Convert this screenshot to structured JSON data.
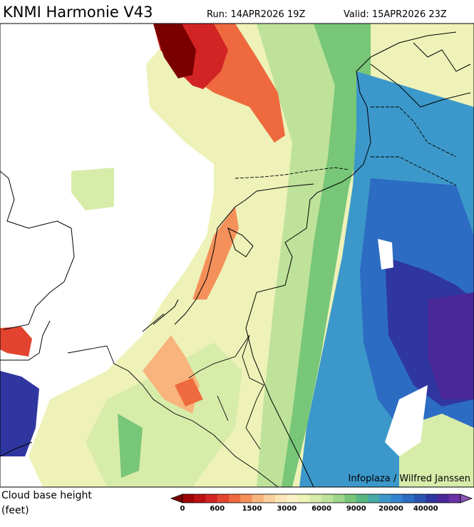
{
  "header": {
    "title": "KNMI Harmonie V43",
    "run": "Run: 14APR2026 19Z",
    "valid": "Valid: 15APR2026 23Z"
  },
  "credit": "Infoplaza / Wilfred Janssen",
  "legend": {
    "title": "Cloud base height",
    "unit": "(feet)",
    "labels": [
      0,
      600,
      1500,
      3000,
      6000,
      9000,
      20000,
      40000
    ],
    "colors": [
      "#7a0000",
      "#9c0404",
      "#ba1010",
      "#d22424",
      "#e24430",
      "#ee6a3e",
      "#f4905a",
      "#f8b47c",
      "#fad09c",
      "#fce6b8",
      "#fcf4c8",
      "#eef4b4",
      "#d8ecaa",
      "#bee29a",
      "#9ed68a",
      "#78c678",
      "#58b680",
      "#48aaa4",
      "#3c98ca",
      "#3284d0",
      "#2c6cc2",
      "#2a54b2",
      "#3036a0",
      "#4a2898",
      "#6a30a4",
      "#8a54b4"
    ]
  }
}
